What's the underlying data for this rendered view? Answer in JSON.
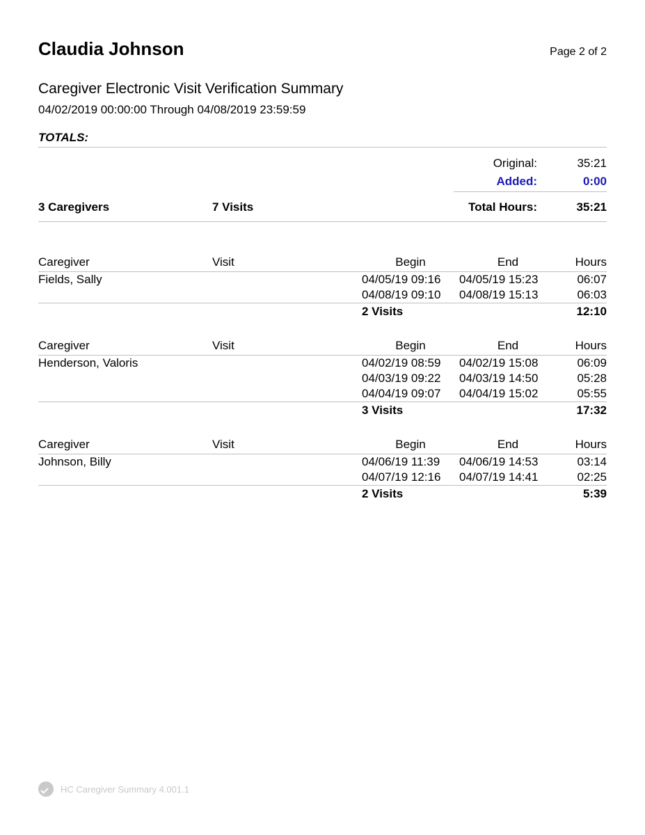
{
  "header": {
    "patient_name": "Claudia Johnson",
    "page_label": "Page 2 of 2",
    "report_title": "Caregiver Electronic Visit Verification Summary",
    "date_range": "04/02/2019 00:00:00 Through 04/08/2019 23:59:59"
  },
  "totals": {
    "heading": "TOTALS:",
    "original_label": "Original:",
    "original_value": "35:21",
    "added_label": "Added:",
    "added_value": "0:00",
    "added_color": "#1a1ab3",
    "caregivers_count": "3  Caregivers",
    "visits_count": "7  Visits",
    "total_hours_label": "Total Hours:",
    "total_hours_value": "35:21"
  },
  "columns": {
    "caregiver": "Caregiver",
    "visit": "Visit",
    "begin": "Begin",
    "end": "End",
    "hours": "Hours"
  },
  "sections": [
    {
      "caregiver": "Fields, Sally",
      "rows": [
        {
          "begin": "04/05/19 09:16",
          "end": "04/05/19 15:23",
          "hours": "06:07"
        },
        {
          "begin": "04/08/19 09:10",
          "end": "04/08/19 15:13",
          "hours": "06:03"
        }
      ],
      "subtotal_visits": "2  Visits",
      "subtotal_hours": "12:10"
    },
    {
      "caregiver": "Henderson, Valoris",
      "rows": [
        {
          "begin": "04/02/19 08:59",
          "end": "04/02/19 15:08",
          "hours": "06:09"
        },
        {
          "begin": "04/03/19 09:22",
          "end": "04/03/19 14:50",
          "hours": "05:28"
        },
        {
          "begin": "04/04/19 09:07",
          "end": "04/04/19 15:02",
          "hours": "05:55"
        }
      ],
      "subtotal_visits": "3  Visits",
      "subtotal_hours": "17:32"
    },
    {
      "caregiver": "Johnson, Billy",
      "rows": [
        {
          "begin": "04/06/19 11:39",
          "end": "04/06/19 14:53",
          "hours": "03:14"
        },
        {
          "begin": "04/07/19 12:16",
          "end": "04/07/19 14:41",
          "hours": "02:25"
        }
      ],
      "subtotal_visits": "2  Visits",
      "subtotal_hours": "5:39"
    }
  ],
  "footer": {
    "text": "HC Caregiver Summary 4.001.1"
  },
  "style": {
    "background": "#ffffff",
    "text_color": "#000000",
    "rule_color": "#bfbfbf",
    "footer_color": "#c9c9c9",
    "patient_name_fontsize": 26,
    "title_fontsize": 21,
    "body_fontsize": 17
  }
}
